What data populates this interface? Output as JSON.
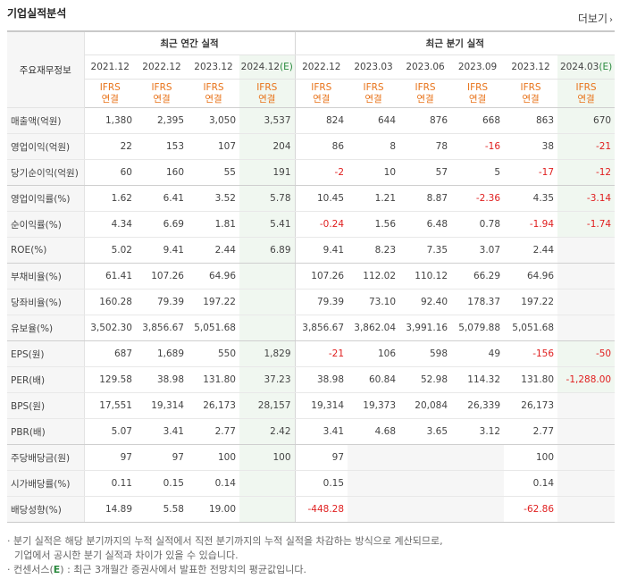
{
  "header": {
    "title": "기업실적분석",
    "more_label": "더보기",
    "more_chevron": "›"
  },
  "table": {
    "label_header": "주요재무정보",
    "group_annual": "최근 연간 실적",
    "group_quarter": "최근 분기 실적",
    "periods": [
      {
        "label": "2021.12",
        "est": ""
      },
      {
        "label": "2022.12",
        "est": ""
      },
      {
        "label": "2023.12",
        "est": ""
      },
      {
        "label": "2024.12",
        "est": "(E)"
      },
      {
        "label": "2022.12",
        "est": ""
      },
      {
        "label": "2023.03",
        "est": ""
      },
      {
        "label": "2023.06",
        "est": ""
      },
      {
        "label": "2023.09",
        "est": ""
      },
      {
        "label": "2023.12",
        "est": ""
      },
      {
        "label": "2024.03",
        "est": "(E)"
      }
    ],
    "ifrs_top": "IFRS",
    "ifrs_bottom": "연결",
    "rows": [
      {
        "label": "매출액(억원)",
        "values": [
          "1,380",
          "2,395",
          "3,050",
          "3,537",
          "824",
          "644",
          "876",
          "668",
          "863",
          "670"
        ]
      },
      {
        "label": "영업이익(억원)",
        "values": [
          "22",
          "153",
          "107",
          "204",
          "86",
          "8",
          "78",
          "-16",
          "38",
          "-21"
        ]
      },
      {
        "label": "당기순이익(억원)",
        "values": [
          "60",
          "160",
          "55",
          "191",
          "-2",
          "10",
          "57",
          "5",
          "-17",
          "-12"
        ]
      },
      {
        "label": "영업이익률(%)",
        "values": [
          "1.62",
          "6.41",
          "3.52",
          "5.78",
          "10.45",
          "1.21",
          "8.87",
          "-2.36",
          "4.35",
          "-3.14"
        ]
      },
      {
        "label": "순이익률(%)",
        "values": [
          "4.34",
          "6.69",
          "1.81",
          "5.41",
          "-0.24",
          "1.56",
          "6.48",
          "0.78",
          "-1.94",
          "-1.74"
        ]
      },
      {
        "label": "ROE(%)",
        "values": [
          "5.02",
          "9.41",
          "2.44",
          "6.89",
          "9.41",
          "8.23",
          "7.35",
          "3.07",
          "2.44",
          ""
        ]
      },
      {
        "label": "부채비율(%)",
        "values": [
          "61.41",
          "107.26",
          "64.96",
          "",
          "107.26",
          "112.02",
          "110.12",
          "66.29",
          "64.96",
          ""
        ]
      },
      {
        "label": "당좌비율(%)",
        "values": [
          "160.28",
          "79.39",
          "197.22",
          "",
          "79.39",
          "73.10",
          "92.40",
          "178.37",
          "197.22",
          ""
        ]
      },
      {
        "label": "유보율(%)",
        "values": [
          "3,502.30",
          "3,856.67",
          "5,051.68",
          "",
          "3,856.67",
          "3,862.04",
          "3,991.16",
          "5,079.88",
          "5,051.68",
          ""
        ]
      },
      {
        "label": "EPS(원)",
        "values": [
          "687",
          "1,689",
          "550",
          "1,829",
          "-21",
          "106",
          "598",
          "49",
          "-156",
          "-50"
        ]
      },
      {
        "label": "PER(배)",
        "values": [
          "129.58",
          "38.98",
          "131.80",
          "37.23",
          "38.98",
          "60.84",
          "52.98",
          "114.32",
          "131.80",
          "-1,288.00"
        ]
      },
      {
        "label": "BPS(원)",
        "values": [
          "17,551",
          "19,314",
          "26,173",
          "28,157",
          "19,314",
          "19,373",
          "20,084",
          "26,339",
          "26,173",
          ""
        ]
      },
      {
        "label": "PBR(배)",
        "values": [
          "5.07",
          "3.41",
          "2.77",
          "2.42",
          "3.41",
          "4.68",
          "3.65",
          "3.12",
          "2.77",
          ""
        ]
      },
      {
        "label": "주당배당금(원)",
        "values": [
          "97",
          "97",
          "100",
          "100",
          "97",
          "",
          "",
          "",
          "100",
          ""
        ]
      },
      {
        "label": "시가배당률(%)",
        "values": [
          "0.11",
          "0.15",
          "0.14",
          "",
          "0.15",
          "",
          "",
          "",
          "0.14",
          ""
        ]
      },
      {
        "label": "배당성향(%)",
        "values": [
          "14.89",
          "5.58",
          "19.00",
          "",
          "-448.28",
          "",
          "",
          "",
          "-62.86",
          ""
        ]
      }
    ]
  },
  "notes": {
    "line1": "· 분기 실적은 해당 분기까지의 누적 실적에서 직전 분기까지의 누적 실적을 차감하는 방식으로 계산되므로,",
    "line2": "기업에서 공시한 분기 실적과 차이가 있을 수 있습니다.",
    "line3_prefix": "· 컨센서스(",
    "line3_e": "E",
    "line3_suffix": ") : 최근 3개월간 증권사에서 발표한 전망치의 평균값입니다."
  },
  "colors": {
    "ifrs": "#e8731a",
    "negative": "#e02020",
    "estimate_bg": "#f0f7f0",
    "label_bg": "#f6f6f6"
  }
}
